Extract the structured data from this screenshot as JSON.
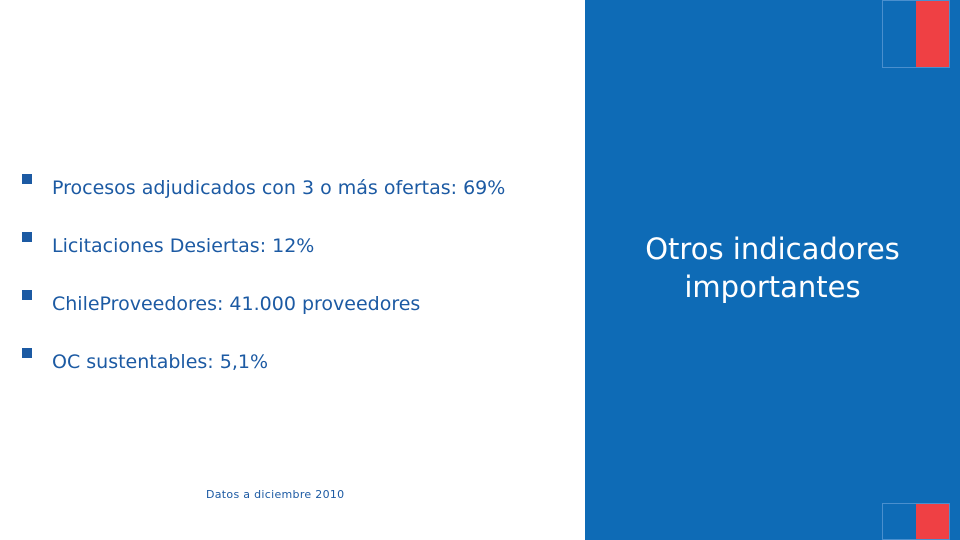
{
  "bullets": [
    {
      "text": "Procesos adjudicados con 3 o más ofertas: 69%"
    },
    {
      "text": "Licitaciones Desiertas: 12%"
    },
    {
      "text": "ChileProveedores: 41.000 proveedores"
    },
    {
      "text": "OC sustentables: 5,1%"
    }
  ],
  "footnote": "Datos  a diciembre  2010",
  "panel": {
    "title_line1": "Otros indicadores",
    "title_line2": "importantes"
  },
  "colors": {
    "accent_blue": "#0e6bb6",
    "text_blue": "#1c5aa3",
    "flag_red": "#ef4044"
  }
}
